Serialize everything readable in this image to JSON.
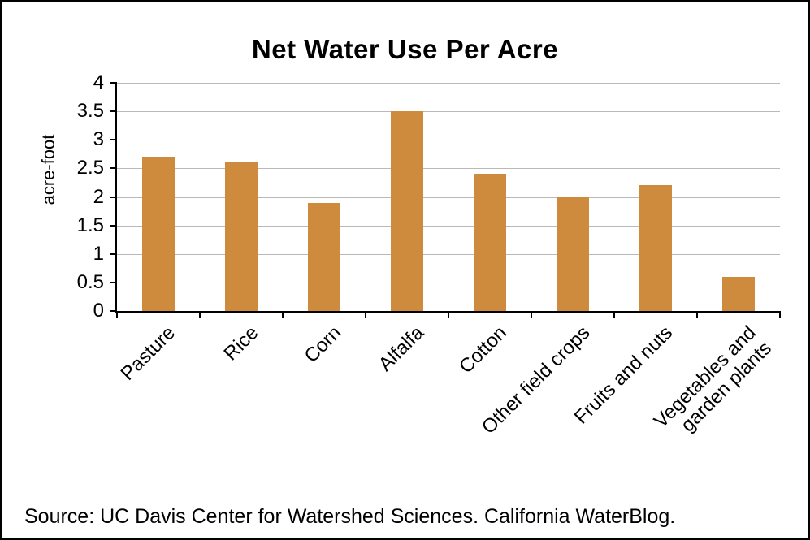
{
  "chart_data": {
    "type": "bar",
    "title": "Net Water Use Per Acre",
    "ylabel": "acre-foot",
    "xlabel": "",
    "categories": [
      "Pasture",
      "Rice",
      "Corn",
      "Alfalfa",
      "Cotton",
      "Other field crops",
      "Fruits and nuts",
      "Vegetables and\ngarden plants"
    ],
    "values": [
      2.7,
      2.6,
      1.9,
      3.5,
      2.4,
      2.0,
      2.2,
      0.6
    ],
    "ylim": [
      0,
      4
    ],
    "yticks": [
      0,
      0.5,
      1,
      1.5,
      2,
      2.5,
      3,
      3.5,
      4
    ],
    "bar_color": "#ce8b3e",
    "gridline_color": "#b9b9b9",
    "grid": "on",
    "legend": "none",
    "source": "Source: UC Davis Center for Watershed Sciences. California WaterBlog."
  }
}
